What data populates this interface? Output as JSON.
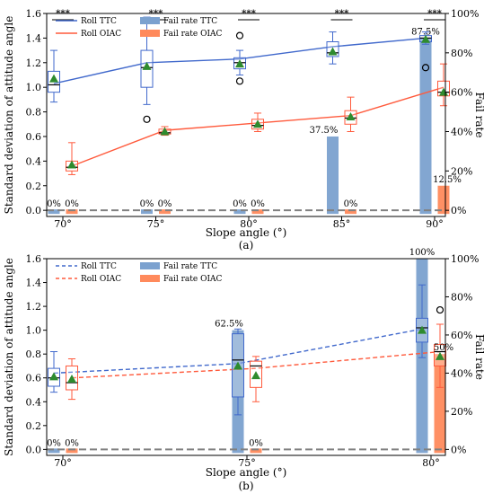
{
  "chart_data": [
    {
      "type": "box",
      "caption": "(a)",
      "xlabel": "Slope angle (°)",
      "ylabel": "Standard deviation of attitude angle",
      "y2label": "Fail rate",
      "categories": [
        "70°",
        "75°",
        "80°",
        "85°",
        "90°"
      ],
      "ylim": [
        -0.05,
        1.6
      ],
      "y2lim": [
        0,
        100
      ],
      "yticks": [
        "0.0",
        "0.2",
        "0.4",
        "0.6",
        "0.8",
        "1.0",
        "1.2",
        "1.4",
        "1.6"
      ],
      "y2ticks": [
        "0%",
        "20%",
        "40%",
        "60%",
        "80%",
        "100%"
      ],
      "significance": [
        "***",
        "***",
        "***",
        "***",
        "***"
      ],
      "legend": [
        "Roll TTC",
        "Roll OIAC",
        "Fail rate TTC",
        "Fail rate OIAC"
      ],
      "legend_position": "top-left",
      "series": [
        {
          "name": "Roll TTC",
          "color": "#4169cc",
          "line": "solid",
          "boxes": [
            {
              "min": 0.88,
              "q1": 0.96,
              "median": 1.02,
              "q3": 1.13,
              "max": 1.3,
              "mean": 1.07,
              "outliers": []
            },
            {
              "min": 0.86,
              "q1": 1.0,
              "median": 1.16,
              "q3": 1.3,
              "max": 1.57,
              "mean": 1.17,
              "outliers": [
                0.74
              ]
            },
            {
              "min": 1.1,
              "q1": 1.15,
              "median": 1.2,
              "q3": 1.24,
              "max": 1.3,
              "mean": 1.19,
              "outliers": [
                1.05,
                1.42
              ]
            },
            {
              "min": 1.19,
              "q1": 1.25,
              "median": 1.28,
              "q3": 1.37,
              "max": 1.45,
              "mean": 1.29,
              "outliers": []
            },
            {
              "min": 1.35,
              "q1": 1.37,
              "median": 1.4,
              "q3": 1.42,
              "max": 1.45,
              "mean": 1.39,
              "outliers": [
                1.16
              ]
            }
          ],
          "line_values": [
            1.03,
            1.2,
            1.23,
            1.33,
            1.4
          ]
        },
        {
          "name": "Roll OIAC",
          "color": "#ff5a3c",
          "line": "solid",
          "boxes": [
            {
              "min": 0.29,
              "q1": 0.32,
              "median": 0.35,
              "q3": 0.4,
              "max": 0.55,
              "mean": 0.37,
              "outliers": []
            },
            {
              "min": 0.61,
              "q1": 0.62,
              "median": 0.63,
              "q3": 0.66,
              "max": 0.68,
              "mean": 0.64,
              "outliers": []
            },
            {
              "min": 0.64,
              "q1": 0.66,
              "median": 0.69,
              "q3": 0.74,
              "max": 0.79,
              "mean": 0.7,
              "outliers": []
            },
            {
              "min": 0.64,
              "q1": 0.7,
              "median": 0.75,
              "q3": 0.81,
              "max": 0.92,
              "mean": 0.76,
              "outliers": []
            },
            {
              "min": 0.85,
              "q1": 0.93,
              "median": 0.96,
              "q3": 1.05,
              "max": 1.19,
              "mean": 0.96,
              "outliers": []
            }
          ],
          "line_values": [
            0.36,
            0.65,
            0.71,
            0.77,
            1.0
          ]
        }
      ],
      "bars": [
        {
          "name": "Fail rate TTC",
          "color": "#7ba1cf",
          "values": [
            0,
            0,
            0,
            37.5,
            87.5
          ]
        },
        {
          "name": "Fail rate OIAC",
          "color": "#ff8a5c",
          "values": [
            0,
            0,
            0,
            0,
            12.5
          ]
        }
      ],
      "bar_labels": [
        [
          "0%",
          "0%"
        ],
        [
          "0%",
          "0%"
        ],
        [
          "0%",
          "0%"
        ],
        [
          "37.5%",
          "0%"
        ],
        [
          "87.5%",
          "12.5%"
        ]
      ]
    },
    {
      "type": "box",
      "caption": "(b)",
      "xlabel": "Slope angle (°)",
      "ylabel": "Standard deviation of attitude angle",
      "y2label": "Fail rate",
      "categories": [
        "70°",
        "75°",
        "80°"
      ],
      "ylim": [
        -0.05,
        1.6
      ],
      "y2lim": [
        0,
        100
      ],
      "yticks": [
        "0.0",
        "0.2",
        "0.4",
        "0.6",
        "0.8",
        "1.0",
        "1.2",
        "1.4",
        "1.6"
      ],
      "y2ticks": [
        "0%",
        "20%",
        "40%",
        "60%",
        "80%",
        "100%"
      ],
      "legend": [
        "Roll TTC",
        "Roll OIAC",
        "Fail rate TTC",
        "Fail rate OIAC"
      ],
      "legend_position": "top-left",
      "series": [
        {
          "name": "Roll TTC",
          "color": "#4169cc",
          "line": "dashed",
          "boxes": [
            {
              "min": 0.48,
              "q1": 0.53,
              "median": 0.6,
              "q3": 0.68,
              "max": 0.82,
              "mean": 0.61,
              "outliers": []
            },
            {
              "min": 0.29,
              "q1": 0.44,
              "median": 0.75,
              "q3": 0.97,
              "max": 1.01,
              "mean": 0.7,
              "outliers": []
            },
            {
              "min": 0.77,
              "q1": 0.9,
              "median": 1.02,
              "q3": 1.1,
              "max": 1.38,
              "mean": 1.0,
              "outliers": []
            }
          ],
          "line_values": [
            0.64,
            0.72,
            1.01
          ]
        },
        {
          "name": "Roll OIAC",
          "color": "#ff5a3c",
          "line": "dashed",
          "boxes": [
            {
              "min": 0.42,
              "q1": 0.5,
              "median": 0.56,
              "q3": 0.7,
              "max": 0.76,
              "mean": 0.59,
              "outliers": []
            },
            {
              "min": 0.4,
              "q1": 0.52,
              "median": 0.7,
              "q3": 0.74,
              "max": 0.78,
              "mean": 0.62,
              "outliers": []
            },
            {
              "min": 0.52,
              "q1": 0.7,
              "median": 0.82,
              "q3": 0.88,
              "max": 1.05,
              "mean": 0.78,
              "outliers": [
                1.17
              ]
            }
          ],
          "line_values": [
            0.6,
            0.68,
            0.82
          ]
        }
      ],
      "bars": [
        {
          "name": "Fail rate TTC",
          "color": "#7ba1cf",
          "values": [
            0,
            62.5,
            100
          ]
        },
        {
          "name": "Fail rate OIAC",
          "color": "#ff8a5c",
          "values": [
            0,
            0,
            50
          ]
        }
      ],
      "bar_labels": [
        [
          "0%",
          "0%"
        ],
        [
          "62.5%",
          "0%"
        ],
        [
          "100%",
          "50%"
        ]
      ]
    }
  ]
}
